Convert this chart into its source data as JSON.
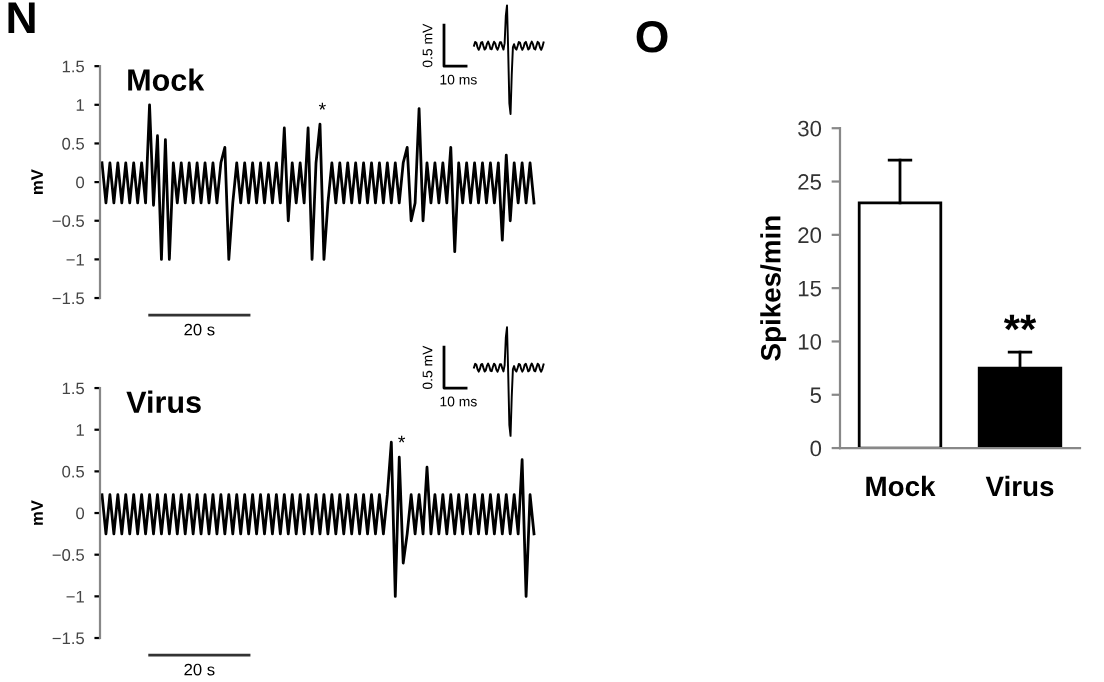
{
  "chart_data": [
    {
      "type": "line",
      "ylabel": "mV",
      "ylim": [
        -1.5,
        1.5
      ],
      "yticks": [
        {
          "value": -1.5,
          "label": "−1.5"
        },
        {
          "value": -1,
          "label": "−1"
        },
        {
          "value": -0.5,
          "label": "−0.5"
        },
        0,
        0.5,
        1,
        1.5
      ],
      "tick_labels": "y",
      "grid": false,
      "legend": "top left",
      "annotations": [
        "N",
        "20 s",
        "0.5 mV",
        "10 ms",
        {
          "text": "*",
          "y": 0.8
        }
      ],
      "categories": [
        null,
        null,
        null,
        null,
        null,
        null,
        null,
        null,
        null,
        null,
        null,
        null,
        null,
        null,
        null,
        null,
        null,
        null,
        null,
        null,
        null,
        null,
        null,
        null,
        null,
        null,
        null,
        null,
        null,
        null,
        null,
        null,
        null,
        null,
        null,
        null,
        null,
        null,
        null,
        null,
        null,
        null,
        null,
        null,
        null,
        null,
        null,
        null,
        null,
        null,
        null,
        null,
        null,
        null,
        null,
        null,
        null,
        null,
        null,
        null,
        null,
        null,
        null,
        null,
        null,
        null,
        null,
        null,
        null,
        null,
        null,
        null,
        null,
        null,
        null,
        null,
        null,
        null,
        null,
        null,
        null,
        null,
        null,
        null,
        null,
        null,
        null,
        null,
        null,
        null,
        null,
        null,
        null,
        null,
        null,
        null,
        null,
        null,
        null,
        null,
        null,
        null,
        null,
        null,
        null,
        null,
        null,
        null,
        null,
        null
      ],
      "series": [
        {
          "name": "Mock",
          "color": "#000000",
          "values": [
            0.25,
            -0.27,
            0.25,
            -0.27,
            0.25,
            -0.27,
            0.25,
            -0.27,
            0.25,
            -0.27,
            0.25,
            -0.27,
            1.0,
            -0.3,
            0.6,
            -1.0,
            0.55,
            -1.0,
            0.25,
            -0.27,
            0.25,
            -0.27,
            0.25,
            -0.27,
            0.25,
            -0.27,
            0.25,
            -0.27,
            0.25,
            -0.27,
            0.25,
            0.45,
            -1.0,
            -0.27,
            0.25,
            -0.27,
            0.25,
            -0.27,
            0.25,
            -0.27,
            0.25,
            -0.27,
            0.25,
            -0.27,
            0.25,
            -0.27,
            0.7,
            -0.5,
            0.25,
            -0.27,
            0.25,
            -0.27,
            0.7,
            -1.0,
            0.25,
            0.75,
            -1.0,
            -0.27,
            0.25,
            -0.27,
            0.25,
            -0.27,
            0.25,
            -0.27,
            0.25,
            -0.27,
            0.25,
            -0.27,
            0.25,
            -0.27,
            0.25,
            -0.27,
            0.25,
            -0.27,
            0.25,
            -0.27,
            0.25,
            0.45,
            -0.5,
            -0.27,
            0.95,
            -0.5,
            0.25,
            -0.27,
            0.25,
            -0.27,
            0.25,
            -0.27,
            0.45,
            -0.9,
            0.25,
            -0.27,
            0.25,
            -0.27,
            0.25,
            -0.27,
            0.25,
            -0.27,
            0.25,
            -0.27,
            0.25,
            -0.75,
            0.35,
            -0.5,
            0.25,
            -0.27,
            0.25,
            -0.27,
            0.25,
            -0.27
          ]
        }
      ]
    },
    {
      "type": "line",
      "ylabel": "mV",
      "ylim": [
        -1.5,
        1.5
      ],
      "yticks": [
        {
          "value": -1.5,
          "label": "−1.5"
        },
        {
          "value": -1,
          "label": "−1"
        },
        {
          "value": -0.5,
          "label": "−0.5"
        },
        0,
        0.5,
        1,
        1.5
      ],
      "tick_labels": "y",
      "grid": false,
      "legend": "top left",
      "annotations": [
        null,
        "20 s",
        "0.5 mV",
        "10 ms",
        {
          "text": "*",
          "y": 0.72
        }
      ],
      "categories": [
        null,
        null,
        null,
        null,
        null,
        null,
        null,
        null,
        null,
        null,
        null,
        null,
        null,
        null,
        null,
        null,
        null,
        null,
        null,
        null,
        null,
        null,
        null,
        null,
        null,
        null,
        null,
        null,
        null,
        null,
        null,
        null,
        null,
        null,
        null,
        null,
        null,
        null,
        null,
        null,
        null,
        null,
        null,
        null,
        null,
        null,
        null,
        null,
        null,
        null,
        null,
        null,
        null,
        null,
        null,
        null,
        null,
        null,
        null,
        null,
        null,
        null,
        null,
        null,
        null,
        null,
        null,
        null,
        null,
        null,
        null,
        null,
        null,
        null,
        null,
        null,
        null,
        null,
        null,
        null,
        null,
        null,
        null,
        null,
        null,
        null,
        null,
        null,
        null,
        null,
        null,
        null,
        null,
        null,
        null,
        null,
        null,
        null,
        null,
        null,
        null,
        null,
        null,
        null,
        null,
        null,
        null,
        null,
        null,
        null
      ],
      "series": [
        {
          "name": "Virus",
          "color": "#000000",
          "values": [
            0.22,
            -0.25,
            0.22,
            -0.25,
            0.22,
            -0.25,
            0.22,
            -0.25,
            0.22,
            -0.25,
            0.22,
            -0.25,
            0.22,
            -0.25,
            0.22,
            -0.25,
            0.22,
            -0.25,
            0.22,
            -0.25,
            0.22,
            -0.25,
            0.22,
            -0.25,
            0.22,
            -0.25,
            0.22,
            -0.25,
            0.22,
            -0.25,
            0.22,
            -0.25,
            0.22,
            -0.25,
            0.22,
            -0.25,
            0.22,
            -0.25,
            0.22,
            -0.25,
            0.22,
            -0.25,
            0.22,
            -0.25,
            0.22,
            -0.25,
            0.22,
            -0.25,
            0.22,
            -0.25,
            0.22,
            -0.25,
            0.22,
            -0.25,
            0.22,
            -0.25,
            0.22,
            -0.25,
            0.22,
            -0.25,
            0.22,
            -0.25,
            0.22,
            -0.25,
            0.22,
            -0.25,
            0.22,
            -0.25,
            0.22,
            -0.25,
            0.22,
            -0.25,
            0.22,
            0.85,
            -1.0,
            0.67,
            -0.6,
            -0.25,
            0.22,
            -0.25,
            0.22,
            -0.25,
            0.55,
            -0.25,
            0.22,
            -0.25,
            0.22,
            -0.25,
            0.22,
            -0.25,
            0.22,
            -0.25,
            0.22,
            -0.25,
            0.22,
            -0.25,
            0.22,
            -0.25,
            0.22,
            -0.25,
            0.22,
            -0.25,
            0.22,
            -0.25,
            0.22,
            -0.25,
            0.64,
            -1.0,
            0.22,
            -0.25
          ]
        }
      ]
    },
    {
      "type": "bar",
      "ylabel": "Spikes/min",
      "categories": [
        "Mock",
        "Virus"
      ],
      "values": [
        23,
        7.5
      ],
      "colors": [
        "#ffffff",
        "#000000"
      ],
      "errors": [
        [
          23,
          27
        ],
        [
          7.5,
          9
        ]
      ],
      "ylim": [
        0,
        30
      ],
      "yticks": [
        0,
        5,
        10,
        15,
        20,
        25,
        30
      ],
      "grid": false,
      "legend": false,
      "annotations": [
        "O",
        {
          "text": "**",
          "x": "Virus",
          "y": 9
        }
      ]
    }
  ]
}
